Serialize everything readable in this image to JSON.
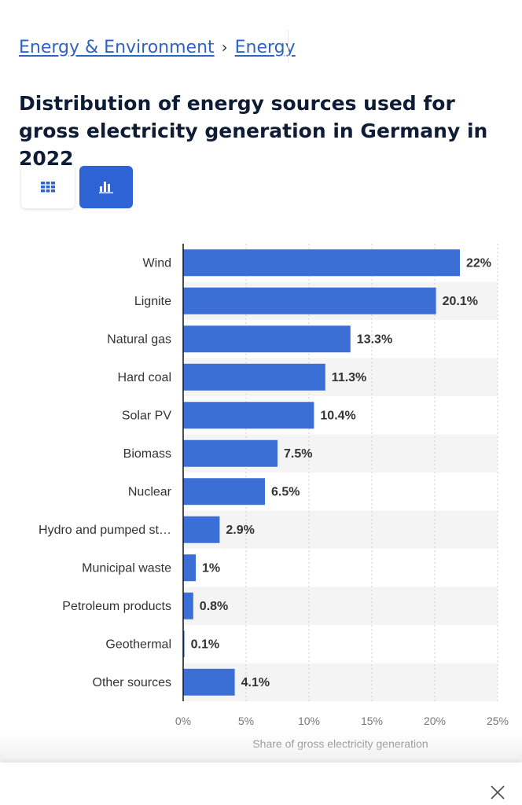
{
  "breadcrumb": {
    "items": [
      "Energy & Environment",
      "Energy"
    ],
    "separator": "›"
  },
  "page_title": "Distribution of energy sources used for gross electricity generation in Germany in 2022",
  "view_toggle": {
    "table_icon": "grid-icon",
    "chart_icon": "bar-chart-icon",
    "active": "chart"
  },
  "colors": {
    "bar": "#3b6fd6",
    "accent": "#2e63d6",
    "link": "#2e63c4"
  },
  "chart_data": {
    "type": "bar",
    "orientation": "horizontal",
    "categories": [
      "Wind",
      "Lignite",
      "Natural gas",
      "Hard coal",
      "Solar PV",
      "Biomass",
      "Nuclear",
      "Hydro and pumped st…",
      "Municipal waste",
      "Petroleum products",
      "Geothermal",
      "Other sources"
    ],
    "values": [
      22,
      20.1,
      13.3,
      11.3,
      10.4,
      7.5,
      6.5,
      2.9,
      1,
      0.8,
      0.1,
      4.1
    ],
    "value_labels": [
      "22%",
      "20.1%",
      "13.3%",
      "11.3%",
      "10.4%",
      "7.5%",
      "6.5%",
      "2.9%",
      "1%",
      "0.8%",
      "0.1%",
      "4.1%"
    ],
    "x_ticks": [
      "0%",
      "5%",
      "10%",
      "15%",
      "20%",
      "25%"
    ],
    "xlim": [
      0,
      25
    ],
    "xlabel": "Share of gross electricity generation",
    "grid": true
  },
  "close_icon": "close-icon"
}
